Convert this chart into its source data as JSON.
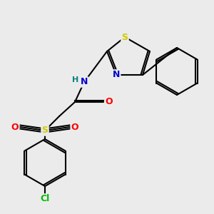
{
  "bg_color": "#ebebeb",
  "bond_color": "#000000",
  "atom_colors": {
    "S_thiazole": "#cccc00",
    "S_sulfonyl": "#cccc00",
    "N": "#0000cc",
    "O": "#ff0000",
    "Cl": "#00bb00",
    "H": "#008080",
    "C": "#000000"
  },
  "figsize": [
    3.0,
    3.0
  ],
  "dpi": 100
}
